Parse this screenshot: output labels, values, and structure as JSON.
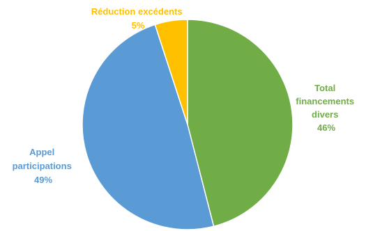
{
  "chart_data": {
    "type": "pie",
    "title": "",
    "start_angle_deg": 0,
    "direction": "clockwise",
    "slices": [
      {
        "label_lines": [
          "Total",
          "financements",
          "divers"
        ],
        "label": "Total financements divers",
        "value": 46,
        "value_label": "46%",
        "color": "#70AD47"
      },
      {
        "label_lines": [
          "Appel",
          "participations"
        ],
        "label": "Appel participations",
        "value": 49,
        "value_label": "49%",
        "color": "#5B9BD5"
      },
      {
        "label_lines": [
          "Réduction excédents"
        ],
        "label": "Réduction excédents",
        "value": 5,
        "value_label": "5%",
        "color": "#FFC000"
      }
    ]
  }
}
